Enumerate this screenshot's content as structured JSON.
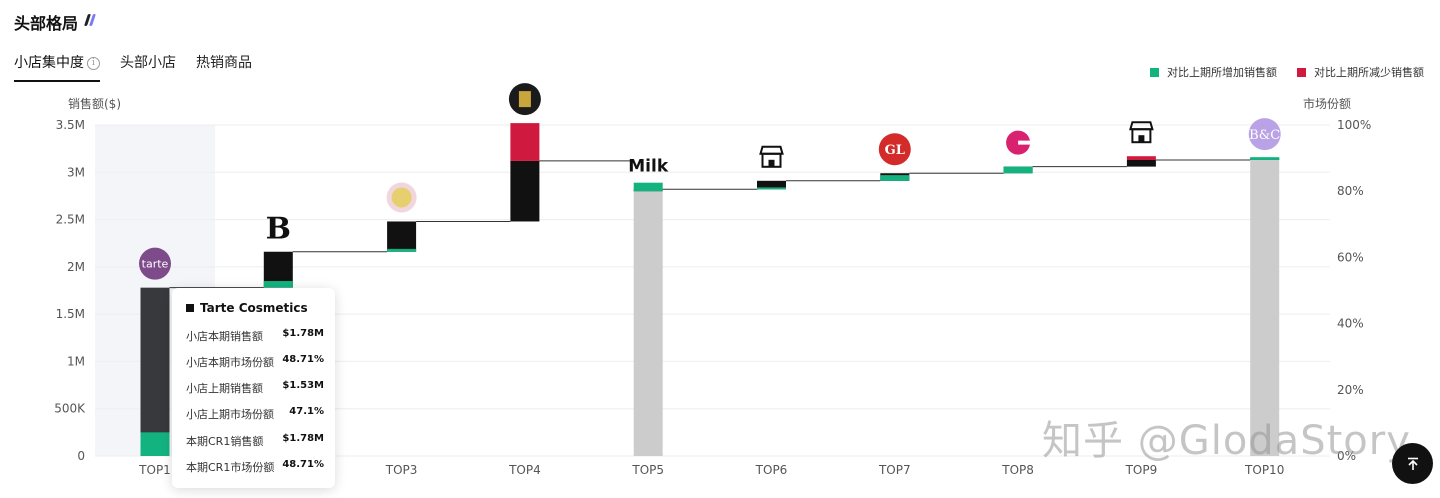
{
  "section": {
    "title": "头部格局"
  },
  "tabs": [
    {
      "label": "小店集中度"
    },
    {
      "label": "头部小店"
    },
    {
      "label": "热销商品"
    }
  ],
  "legend": {
    "increase": {
      "label": "对比上期所增加销售额",
      "color": "#13b37f"
    },
    "decrease": {
      "label": "对比上期所减少销售额",
      "color": "#d0193f"
    }
  },
  "colors": {
    "cumulative_bar": "#cccccc",
    "current_bar": "#111111",
    "highlight_bar": "#38393d",
    "highlight_band": "#f4f5f9",
    "connector": "#333333"
  },
  "chart_data": {
    "type": "bar",
    "title": "",
    "y_left_label": "销售额($)",
    "y_right_label": "市场份额",
    "y_left_ticks": [
      "0",
      "500K",
      "1M",
      "1.5M",
      "2M",
      "2.5M",
      "3M",
      "3.5M"
    ],
    "y_right_ticks": [
      "0%",
      "20%",
      "40%",
      "60%",
      "80%",
      "100%"
    ],
    "ylim": [
      0,
      3500000
    ],
    "categories": [
      "TOP1",
      "TOP2",
      "TOP3",
      "TOP4",
      "TOP5",
      "TOP6",
      "TOP7",
      "TOP8",
      "TOP9",
      "TOP10"
    ],
    "stores": [
      {
        "rank": "TOP1",
        "name": "Tarte Cosmetics",
        "base": 0,
        "current": 1780000,
        "change": 250000,
        "icon": "tarte-logo"
      },
      {
        "rank": "TOP2",
        "base": 1780000,
        "current": 380000,
        "change": 70000,
        "icon": "b-logo"
      },
      {
        "rank": "TOP3",
        "base": 2160000,
        "current": 320000,
        "change": 30000,
        "icon": "round-badge-logo"
      },
      {
        "rank": "TOP4",
        "base": 2480000,
        "current": 640000,
        "change": -400000,
        "icon": "dark-square-logo"
      },
      {
        "rank": "TOP5",
        "base": 2800000,
        "current": 20000,
        "change": 90000,
        "icon": "milk-makeup-logo",
        "cumulative": true
      },
      {
        "rank": "TOP6",
        "base": 2820000,
        "current": 90000,
        "change": 20000,
        "icon": "storefront-icon"
      },
      {
        "rank": "TOP7",
        "base": 2910000,
        "current": 80000,
        "change": 60000,
        "icon": "red-circle-logo"
      },
      {
        "rank": "TOP8",
        "base": 2990000,
        "current": 70000,
        "change": 70000,
        "icon": "pink-e-logo"
      },
      {
        "rank": "TOP9",
        "base": 3060000,
        "current": 70000,
        "change": -40000,
        "icon": "storefront-icon"
      },
      {
        "rank": "TOP10",
        "base": 3130000,
        "current": 20000,
        "change": 30000,
        "icon": "bc-logo",
        "cumulative": true
      }
    ],
    "grid": true,
    "legend_position": "top-right",
    "highlight": "TOP1"
  },
  "tooltip": {
    "title": "Tarte Cosmetics",
    "rows": [
      {
        "label": "小店本期销售额",
        "value": "$1.78M"
      },
      {
        "label": "小店本期市场份额",
        "value": "48.71%"
      },
      {
        "label": "小店上期销售额",
        "value": "$1.53M"
      },
      {
        "label": "小店上期市场份额",
        "value": "47.1%"
      },
      {
        "label": "本期CR1销售额",
        "value": "$1.78M"
      },
      {
        "label": "本期CR1市场份额",
        "value": "48.71%"
      }
    ]
  },
  "watermark": "知乎 @GlodaStory",
  "back_to_top": {
    "icon": "arrow-up-to-top-icon"
  }
}
